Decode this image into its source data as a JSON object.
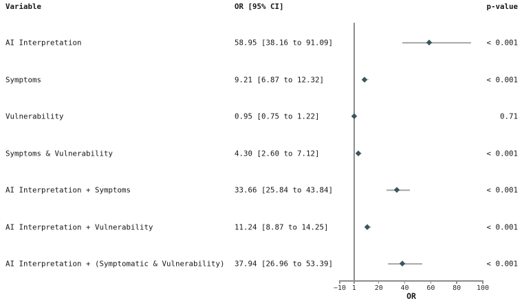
{
  "header": {
    "variable": "Variable",
    "or_ci": "OR [95% CI]",
    "p_value": "p-value"
  },
  "chart_data": {
    "type": "forest",
    "xlabel": "OR",
    "x_range": [
      -10,
      100
    ],
    "x_ticks": [
      -10,
      1,
      20,
      40,
      60,
      80,
      100
    ],
    "x_tick_labels": [
      "−10",
      "1",
      "20",
      "40",
      "60",
      "80",
      "100"
    ],
    "reference_line": 1,
    "grid": "off",
    "rows": [
      {
        "label": "AI Interpretation",
        "or": 58.95,
        "ci_low": 38.16,
        "ci_high": 91.09,
        "or_text": "58.95 [38.16 to 91.09]",
        "p_text": "< 0.001"
      },
      {
        "label": "Symptoms",
        "or": 9.21,
        "ci_low": 6.87,
        "ci_high": 12.32,
        "or_text": "9.21 [6.87 to 12.32]",
        "p_text": "< 0.001"
      },
      {
        "label": "Vulnerability",
        "or": 0.95,
        "ci_low": 0.75,
        "ci_high": 1.22,
        "or_text": "0.95 [0.75 to 1.22]",
        "p_text": "0.71"
      },
      {
        "label": "Symptoms & Vulnerability",
        "or": 4.3,
        "ci_low": 2.6,
        "ci_high": 7.12,
        "or_text": "4.30 [2.60 to 7.12]",
        "p_text": "< 0.001"
      },
      {
        "label": "AI Interpretation + Symptoms",
        "or": 33.66,
        "ci_low": 25.84,
        "ci_high": 43.84,
        "or_text": "33.66 [25.84 to 43.84]",
        "p_text": "< 0.001"
      },
      {
        "label": "AI Interpretation + Vulnerability",
        "or": 11.24,
        "ci_low": 8.87,
        "ci_high": 14.25,
        "or_text": "11.24 [8.87 to 14.25]",
        "p_text": "< 0.001"
      },
      {
        "label": "AI Interpretation + (Symptomatic & Vulnerability)",
        "or": 37.94,
        "ci_low": 26.96,
        "ci_high": 53.39,
        "or_text": "37.94 [26.96 to 53.39]",
        "p_text": "< 0.001"
      }
    ]
  },
  "colors": {
    "marker": "#3a565c",
    "ci_line": "#a5a5a5",
    "axis": "#8c8c8c",
    "text": "#161616"
  }
}
